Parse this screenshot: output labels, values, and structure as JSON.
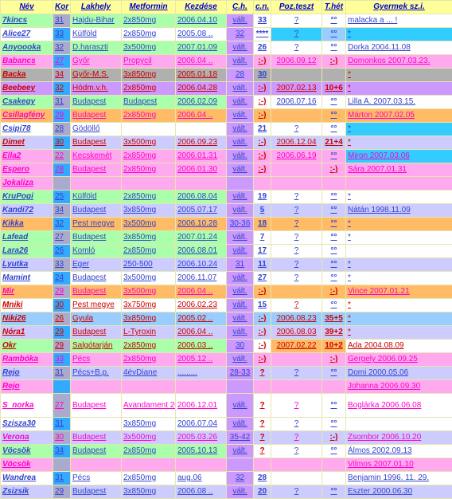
{
  "headers": [
    "Név",
    "Kor",
    "Lakhely",
    "Metformin",
    "Kezdése",
    "C.h.",
    "c.n.",
    "Poz.teszt",
    "T.hét",
    "Gyermek sz.i."
  ],
  "colors": {
    "name_blue": "#3344cc",
    "name_pink": "#ff00cc",
    "name_red": "#cc0000",
    "kor_a": "#33aaff",
    "kor_b": "#aaaacc",
    "green": "#aaffaa",
    "blue": "#aaccff",
    "pink": "#ffaaee",
    "orange": "#ffbb66",
    "gray": "#b0b0b0",
    "violet": "#cc99ff",
    "lav": "#ccccff",
    "cyan": "#33ccff",
    "sky": "#99ccff",
    "white": "#ffffff"
  },
  "rows": [
    {
      "c": [
        "7kincs",
        "31",
        "Hajdu-Bihar",
        "2x850mg",
        "2006.04.10",
        "vált.",
        "33",
        "?",
        "°°",
        "malacka a ... !"
      ],
      "nc": "name_blue",
      "rb": "green",
      "cnb": "white",
      "ptb": "white",
      "thb": "white",
      "gyb": "white"
    },
    {
      "c": [
        "Alice27",
        "33",
        "Külföld",
        "2x850mg",
        "2005.08 ..",
        "32",
        "****",
        "?",
        "°°",
        "*"
      ],
      "nc": "name_blue",
      "rb": "white",
      "kb": "kor_a",
      "cnb": "white",
      "ptb": "cyan",
      "thb": "sky",
      "gyb": "cyan"
    },
    {
      "c": [
        "Anyoooka",
        "32",
        "D.haraszti",
        "3x500mg",
        "2007.01.09",
        "vált.",
        "26",
        "?",
        "°°",
        "Dorka      2004.11.08"
      ],
      "nc": "name_blue",
      "rb": "green",
      "cnb": "white",
      "ptb": "white",
      "thb": "white",
      "gyb": "white"
    },
    {
      "c": [
        "Babancs",
        "27",
        "Győr",
        "Propycil",
        "2006.04 ..",
        "vált.",
        ":-)",
        "2006.09.12",
        ":-)",
        "Domonkos 2007.03.23."
      ],
      "nc": "name_pink",
      "rb": "pink",
      "cnb": "pink",
      "ptb": "pink",
      "thb": "pink",
      "gyb": "pink"
    },
    {
      "c": [
        "Backa",
        "34",
        "Győr-M.S.",
        "3x850mg",
        "2005.01.18",
        "28",
        "30",
        "",
        "",
        "*"
      ],
      "nc": "name_red",
      "rb": "gray",
      "cnb": "gray",
      "ptb": "gray",
      "thb": "gray",
      "gyb": "gray"
    },
    {
      "c": [
        "Beebeey",
        "32",
        "Hódm.v.h.",
        "2x850mg",
        "2006.04.28",
        "vált.",
        ":-)",
        "2007.02.13",
        "10+6",
        "*"
      ],
      "nc": "name_red",
      "rb": "violet",
      "cnb": "violet",
      "ptb": "violet",
      "thb": "violet",
      "gyb": "violet"
    },
    {
      "c": [
        "Csakegy",
        "31",
        "Budapest",
        "Budapest",
        "2006.02.09",
        "vált.",
        ":-)",
        "2006.07.16",
        "°°",
        "Lilla A.    2007.03.15."
      ],
      "nc": "name_blue",
      "rb": "green",
      "cnb": "white",
      "ptb": "white",
      "thb": "white",
      "gyb": "white"
    },
    {
      "c": [
        "Csillagfény",
        "29",
        "Budapest",
        "2x850mg",
        "2006.04 ..",
        "vált.",
        ":-)",
        "",
        "°°",
        "Márton    2007.02.05"
      ],
      "nc": "name_pink",
      "rb": "orange",
      "cnb": "orange",
      "ptb": "orange",
      "thb": "orange",
      "gyb": "orange"
    },
    {
      "c": [
        "Csipi78",
        "28",
        "Gödöllő",
        "",
        "",
        "vált.",
        "21",
        "?",
        "°°",
        "*"
      ],
      "nc": "name_blue",
      "rb": "white",
      "cnb": "white",
      "ptb": "white",
      "thb": "white",
      "gyb": "cyan"
    },
    {
      "c": [
        "Dimet",
        "30",
        "Budapest",
        "3x500mg",
        "2006.09.23",
        "vált.",
        ":-)",
        "2006.12.04",
        "21+4",
        "*"
      ],
      "nc": "name_red",
      "rb": "lav",
      "cnb": "lav",
      "ptb": "lav",
      "thb": "lav",
      "gyb": "lav"
    },
    {
      "c": [
        "Ella2",
        "22",
        "Kecskemét",
        "2x850mg",
        "2006.01.31",
        "vált.",
        ":-)",
        "2006.06.19",
        "°°",
        "Miron       2007.03.06"
      ],
      "nc": "name_pink",
      "rb": "pink",
      "cnb": "pink",
      "ptb": "pink",
      "thb": "pink",
      "gyb": "cyan"
    },
    {
      "c": [
        "Espero",
        "28",
        "Budapest",
        "2x850mg",
        "2006.01.30",
        "vált.",
        ":-)",
        "",
        ":-)",
        "Sára        2007.01.31"
      ],
      "nc": "name_pink",
      "rb": "pink",
      "cnb": "pink",
      "ptb": "pink",
      "thb": "pink",
      "gyb": "pink"
    },
    {
      "c": [
        "Jokaliza",
        "",
        "",
        "",
        "",
        "",
        "",
        "",
        "",
        ""
      ],
      "nc": "name_pink",
      "rb": "pink",
      "cnb": "pink",
      "ptb": "pink",
      "thb": "pink",
      "gyb": "pink"
    },
    {
      "c": [
        "KruPogi",
        "25",
        "Külföld",
        "2x850mg",
        "2006.08.04",
        "vált.",
        "19",
        "?",
        "°°",
        "*"
      ],
      "nc": "name_blue",
      "rb": "green",
      "cnb": "white",
      "ptb": "white",
      "thb": "white",
      "gyb": "white"
    },
    {
      "c": [
        "Kandi72",
        "34",
        "Budapest",
        "3x850mg",
        "2005.07.17",
        "vált.",
        "5",
        "?",
        "°°",
        "Nátán      1998.11.09"
      ],
      "nc": "name_blue",
      "rb": "lav",
      "cnb": "lav",
      "ptb": "lav",
      "thb": "lav",
      "gyb": "lav"
    },
    {
      "c": [
        "Kikka",
        "32",
        "Pest megye",
        "3x500mg",
        "2006.10.28",
        "30-36",
        "18",
        "?",
        "°°",
        "*"
      ],
      "nc": "name_blue",
      "rb": "orange",
      "cnb": "orange",
      "ptb": "orange",
      "thb": "orange",
      "gyb": "orange"
    },
    {
      "c": [
        "Lafead",
        "27",
        "Budapest",
        "3x850mg",
        "2007.01.24",
        "vált.",
        "7",
        "?",
        "°°",
        "*"
      ],
      "nc": "name_blue",
      "rb": "green",
      "cnb": "white",
      "ptb": "white",
      "thb": "white",
      "gyb": "white"
    },
    {
      "c": [
        "Lara26",
        "26",
        "Komló",
        "2x850mg",
        "2006.08.01",
        "vált.",
        "17",
        "?",
        "°°",
        ""
      ],
      "nc": "name_blue",
      "rb": "green",
      "cnb": "white",
      "ptb": "white",
      "thb": "white",
      "gyb": "white"
    },
    {
      "c": [
        "Lyutka",
        "33",
        "Eger",
        "250-500",
        "2006.10.24",
        "31",
        "11",
        "?",
        "°°",
        "*"
      ],
      "nc": "name_blue",
      "rb": "lav",
      "cnb": "lav",
      "ptb": "lav",
      "thb": "lav",
      "gyb": "lav"
    },
    {
      "c": [
        "Mamint",
        "24",
        "Budapest",
        "3x500mg",
        "2006.11.07",
        "vált.",
        "27",
        "?",
        "°°",
        "*"
      ],
      "nc": "name_blue",
      "rb": "white",
      "cnb": "white",
      "ptb": "white",
      "thb": "white",
      "gyb": "white"
    },
    {
      "c": [
        "Mir",
        "29",
        "Budapest",
        "3x500mg",
        "2006.04 ..",
        "vált.",
        ":-)",
        "",
        ":-)",
        "Vince      2007.01.21"
      ],
      "nc": "name_pink",
      "rb": "orange",
      "cnb": "orange",
      "ptb": "orange",
      "thb": "orange",
      "gyb": "orange"
    },
    {
      "c": [
        "Mniki",
        "30",
        "Pest megye",
        "3x750mg",
        "2006.02.23",
        "vált.",
        "15",
        "?",
        "°°",
        "*"
      ],
      "nc": "name_red",
      "rb": "white",
      "cnb": "white",
      "ptb": "white",
      "thb": "white",
      "gyb": "white"
    },
    {
      "c": [
        "Niki26",
        "26",
        "Gyula",
        "3x850mg",
        "2005.02 ..",
        "vált.",
        ":-)",
        "2006.08.23",
        "35+5",
        "*"
      ],
      "nc": "name_red",
      "rb": "sky",
      "cnb": "sky",
      "ptb": "sky",
      "thb": "sky",
      "gyb": "sky"
    },
    {
      "c": [
        "Nóra1",
        "29",
        "Budapest",
        "L-Tyroxin",
        "2006.04 ..",
        "vált.",
        ":-)",
        "2006.08.03",
        "39+2",
        "*"
      ],
      "nc": "name_red",
      "rb": "lav",
      "cnb": "lav",
      "ptb": "lav",
      "thb": "lav",
      "gyb": "lav"
    },
    {
      "c": [
        "Okr",
        "29",
        "Salgótarján",
        "2x850mg",
        "2006.03 ..",
        "30",
        ":-)",
        "2007.02.22",
        "10+2",
        "Ada        2004.08.09"
      ],
      "nc": "name_red",
      "rb": "green",
      "cnb": "white",
      "ptb": "orange",
      "thb": "orange",
      "gyb": "white"
    },
    {
      "c": [
        "Rambóka",
        "33",
        "Pécs",
        "2x850mg",
        "2005.12 ..",
        "vált.",
        ":-)",
        "",
        ":-)",
        "Gergely  2006.09.25"
      ],
      "nc": "name_pink",
      "rb": "pink",
      "cnb": "pink",
      "ptb": "pink",
      "thb": "pink",
      "gyb": "pink"
    },
    {
      "c": [
        "Rejo",
        "31",
        "Pécs+B.p.",
        "4évDiane",
        ".........",
        "28-33",
        "?",
        "?",
        "°°",
        "Domi       2000.05.06"
      ],
      "nc": "name_blue",
      "rb": "lav",
      "cnb": "lav",
      "ptb": "lav",
      "thb": "lav",
      "gyb": "lav"
    },
    {
      "c": [
        "Rejo",
        "",
        "",
        "",
        "",
        "",
        "",
        "",
        "",
        "Johanna  2006.09.30"
      ],
      "nc": "name_pink",
      "rb": "pink",
      "cnb": "pink",
      "ptb": "pink",
      "thb": "pink",
      "gyb": "pink"
    },
    {
      "c": [
        "S_norka",
        "27",
        "Budapest",
        "Avandament 2000 mg",
        "2006.12.01",
        "vált.",
        "?",
        "?",
        "°°",
        "Boglárka 2006.06.08"
      ],
      "nc": "name_pink",
      "rb": "white",
      "cnb": "white",
      "ptb": "white",
      "thb": "white",
      "gyb": "white",
      "tall": true
    },
    {
      "c": [
        "Szisza30",
        "31",
        "",
        "3x850mg",
        "2006.07.04",
        "vált.",
        "?",
        "?",
        "°°",
        ""
      ],
      "nc": "name_blue",
      "rb": "white",
      "cnb": "white",
      "ptb": "white",
      "thb": "white",
      "gyb": "white"
    },
    {
      "c": [
        "Verona",
        "30",
        "Budapest",
        "3x500mg",
        "2005.03.26",
        "35-42",
        "?",
        "?",
        ":-)",
        "Zsombor  2006.10.20"
      ],
      "nc": "name_pink",
      "rb": "lav",
      "cnb": "lav",
      "ptb": "lav",
      "thb": "lav",
      "gyb": "lav"
    },
    {
      "c": [
        "Vöcsök",
        "34",
        "Budapest",
        "2x850mg",
        "2005.10.13",
        "vált.",
        "?",
        "?",
        "°°",
        "Álmos     2002.09.13"
      ],
      "nc": "name_blue",
      "rb": "green",
      "cnb": "white",
      "ptb": "white",
      "thb": "white",
      "gyb": "white"
    },
    {
      "c": [
        "Vöcsök",
        "",
        "",
        "",
        "",
        "",
        "",
        "",
        "",
        "Vilmos     2007.01.10"
      ],
      "nc": "name_pink",
      "rb": "pink",
      "cnb": "pink",
      "ptb": "pink",
      "thb": "pink",
      "gyb": "pink"
    },
    {
      "c": [
        "Wandrea",
        "31",
        "Pécs",
        "2x850mg",
        "aug.06",
        "32",
        "28",
        "",
        "",
        "Benjamin 1996. 11. 29."
      ],
      "nc": "name_blue",
      "rb": "white",
      "cnb": "white",
      "ptb": "white",
      "thb": "white",
      "gyb": "white"
    },
    {
      "c": [
        "Zsizsik",
        "29",
        "Budapest",
        "3x850mg",
        "2006.08 ..",
        "vált.",
        "20",
        "?",
        "°°",
        "Eszter      2000.06.30"
      ],
      "nc": "name_blue",
      "rb": "lav",
      "cnb": "lav",
      "ptb": "lav",
      "thb": "lav",
      "gyb": "lav"
    }
  ]
}
